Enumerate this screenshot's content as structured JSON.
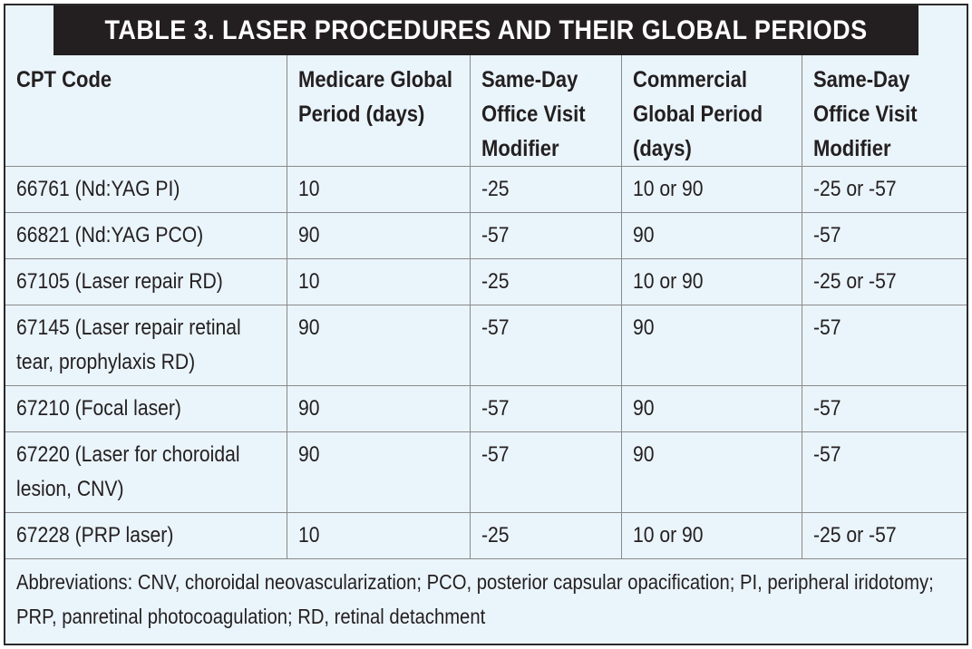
{
  "table": {
    "title": "TABLE 3. LASER PROCEDURES AND THEIR GLOBAL PERIODS",
    "columns": [
      "CPT Code",
      "Medicare Global Period (days)",
      "Same-Day Office Visit Modifier",
      "Commercial Global Period (days)",
      "Same-Day Office Visit Modifier"
    ],
    "rows": [
      [
        "66761 (Nd:YAG PI)",
        "10",
        "-25",
        "10 or 90",
        "-25 or -57"
      ],
      [
        "66821 (Nd:YAG PCO)",
        "90",
        "-57",
        "90",
        "-57"
      ],
      [
        "67105 (Laser repair RD)",
        "10",
        "-25",
        "10 or 90",
        "-25 or -57"
      ],
      [
        "67145 (Laser repair retinal tear, prophylaxis RD)",
        "90",
        "-57",
        "90",
        "-57"
      ],
      [
        "67210 (Focal laser)",
        "90",
        "-57",
        "90",
        "-57"
      ],
      [
        "67220 (Laser for choroidal lesion, CNV)",
        "90",
        "-57",
        "90",
        "-57"
      ],
      [
        "67228 (PRP laser)",
        "10",
        "-25",
        "10 or 90",
        "-25 or -57"
      ]
    ],
    "footnote": "Abbreviations: CNV, choroidal neovascularization; PCO, posterior capsular opacification; PI, peripheral iridotomy; PRP, panretinal photocoagulation; RD, retinal detachment"
  },
  "colors": {
    "header_bar": "#231f20",
    "table_background": "#eaf4fb",
    "text": "#231f20",
    "grid": "#8a8a8a"
  }
}
